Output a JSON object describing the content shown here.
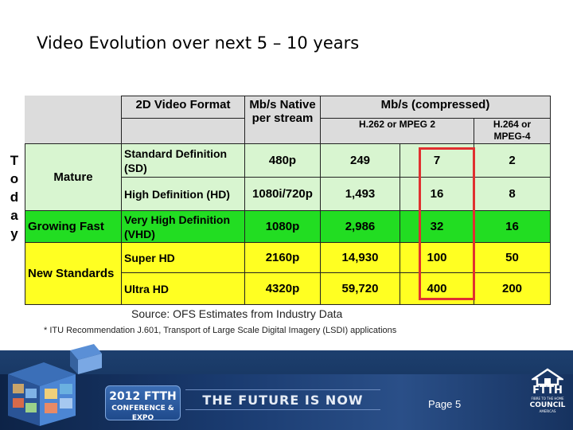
{
  "slide": {
    "title": "Video Evolution over next 5 – 10 years",
    "today_label": [
      "T",
      "o",
      "d",
      "a",
      "y"
    ],
    "source": "Source: OFS Estimates from Industry Data",
    "footnote": "* ITU Recommendation J.601, Transport of Large Scale Digital Imagery (LSDI) applications",
    "page": "Page 5"
  },
  "table": {
    "headers": {
      "format": "2D Video Format",
      "native": "Mb/s Native per stream",
      "compressed": "Mb/s (compressed)",
      "h262": "H.262 or MPEG 2",
      "h264": "H.264 or MPEG-4"
    },
    "categories": {
      "mature": "Mature",
      "growing": "Growing Fast",
      "new": "New Standards"
    },
    "rows": [
      {
        "format": "Standard Definition (SD)",
        "res": "480p",
        "native": "249",
        "h262": "7",
        "h264": "2"
      },
      {
        "format": "High Definition (HD)",
        "res": "1080i/720p",
        "native": "1,493",
        "h262": "16",
        "h264": "8"
      },
      {
        "format": "Very High Definition (VHD)",
        "res": "1080p",
        "native": "2,986",
        "h262": "32",
        "h264": "16"
      },
      {
        "format": "Super HD",
        "res": "2160p",
        "native": "14,930",
        "h262": "100",
        "h264": "50"
      },
      {
        "format": "Ultra HD",
        "res": "4320p",
        "native": "59,720",
        "h262": "400",
        "h264": "200"
      }
    ],
    "colors": {
      "grey": "#dcdcdc",
      "light_green": "#d8f5d0",
      "green": "#22dd22",
      "yellow": "#ffff22",
      "highlight": "#e03030"
    }
  },
  "footer": {
    "badge_line1": "2012 FTTH",
    "badge_line2": "CONFERENCE & EXPO",
    "tagline": "THE FUTURE IS NOW",
    "logo_name": "FTTH",
    "logo_small1": "FIBRE TO THE HOME",
    "logo_council": "COUNCIL",
    "logo_small2": "AMERICAS"
  }
}
